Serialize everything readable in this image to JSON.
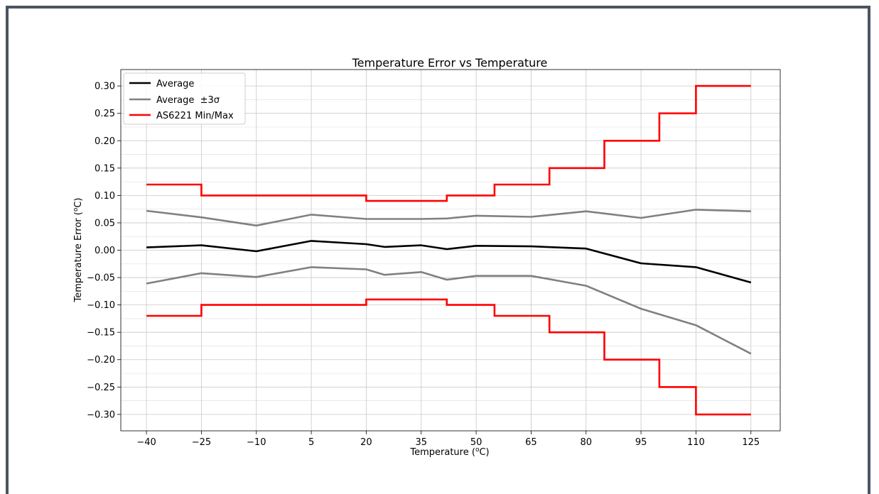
{
  "chart_data": {
    "type": "line",
    "title": "Temperature Error vs Temperature",
    "xlabel_main": "Temperature (",
    "xlabel_sup": "o",
    "xlabel_unit": "C)",
    "ylabel_main": "Temperature Error  (",
    "ylabel_sup": "o",
    "ylabel_unit": "C)",
    "xlim": [
      -47,
      133
    ],
    "ylim": [
      -0.33,
      0.33
    ],
    "xticks": [
      -40,
      -25,
      -10,
      5,
      20,
      35,
      50,
      65,
      80,
      95,
      110,
      125
    ],
    "xtick_labels": [
      "−40",
      "−25",
      "−10",
      "5",
      "20",
      "35",
      "50",
      "65",
      "80",
      "95",
      "110",
      "125"
    ],
    "yticks": [
      -0.3,
      -0.25,
      -0.2,
      -0.15,
      -0.1,
      -0.05,
      0.0,
      0.05,
      0.1,
      0.15,
      0.2,
      0.25,
      0.3
    ],
    "ytick_labels": [
      "−0.30",
      "−0.25",
      "−0.20",
      "−0.15",
      "−0.10",
      "−0.05",
      "0.00",
      "0.05",
      "0.10",
      "0.15",
      "0.20",
      "0.25",
      "0.30"
    ],
    "grid": true,
    "legend_position": "top-left",
    "series": [
      {
        "name": "Average",
        "color": "#000000",
        "x": [
          -40,
          -25,
          -10,
          5,
          20,
          25,
          35,
          42,
          50,
          65,
          80,
          95,
          110,
          125
        ],
        "y": [
          0.005,
          0.009,
          -0.002,
          0.017,
          0.011,
          0.006,
          0.009,
          0.002,
          0.008,
          0.007,
          0.003,
          -0.024,
          -0.031,
          -0.059
        ]
      },
      {
        "name": "Average  ±3σ",
        "color": "#808080",
        "x": [
          -40,
          -25,
          -10,
          5,
          20,
          25,
          35,
          42,
          50,
          65,
          80,
          95,
          110,
          125
        ],
        "y": [
          0.072,
          0.06,
          0.045,
          0.065,
          0.057,
          0.057,
          0.057,
          0.058,
          0.063,
          0.061,
          0.071,
          0.059,
          0.074,
          0.071
        ]
      },
      {
        "name": "",
        "color": "#808080",
        "x": [
          -40,
          -25,
          -10,
          5,
          20,
          25,
          35,
          42,
          50,
          65,
          80,
          95,
          110,
          125
        ],
        "y": [
          -0.061,
          -0.042,
          -0.049,
          -0.031,
          -0.035,
          -0.045,
          -0.04,
          -0.054,
          -0.047,
          -0.047,
          -0.065,
          -0.107,
          -0.137,
          -0.189
        ]
      },
      {
        "name": "AS6221 Min/Max",
        "color": "#ff0000",
        "step": true,
        "x": [
          -40,
          -25,
          -25,
          20,
          20,
          42,
          42,
          55,
          55,
          70,
          70,
          85,
          85,
          100,
          100,
          110,
          110,
          125
        ],
        "y": [
          0.12,
          0.12,
          0.1,
          0.1,
          0.09,
          0.09,
          0.1,
          0.1,
          0.12,
          0.12,
          0.15,
          0.15,
          0.2,
          0.2,
          0.25,
          0.25,
          0.3,
          0.3
        ]
      },
      {
        "name": "",
        "color": "#ff0000",
        "step": true,
        "x": [
          -40,
          -25,
          -25,
          20,
          20,
          42,
          42,
          55,
          55,
          70,
          70,
          85,
          85,
          100,
          100,
          110,
          110,
          125
        ],
        "y": [
          -0.12,
          -0.12,
          -0.1,
          -0.1,
          -0.09,
          -0.09,
          -0.1,
          -0.1,
          -0.12,
          -0.12,
          -0.15,
          -0.15,
          -0.2,
          -0.2,
          -0.25,
          -0.25,
          -0.3,
          -0.3
        ]
      }
    ]
  }
}
